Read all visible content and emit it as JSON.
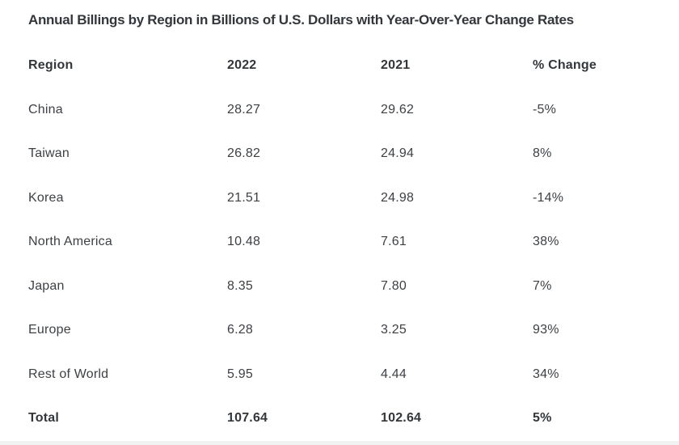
{
  "title": "Annual Billings by Region in Billions of U.S. Dollars with Year-Over-Year Change Rates",
  "table": {
    "columns": [
      "Region",
      "2022",
      "2021",
      "% Change"
    ],
    "rows": [
      [
        "China",
        "28.27",
        "29.62",
        "-5%"
      ],
      [
        "Taiwan",
        "26.82",
        "24.94",
        "8%"
      ],
      [
        "Korea",
        "21.51",
        "24.98",
        "-14%"
      ],
      [
        "North America",
        "10.48",
        "7.61",
        "38%"
      ],
      [
        "Japan",
        "8.35",
        "7.80",
        "7%"
      ],
      [
        "Europe",
        "6.28",
        "3.25",
        "93%"
      ],
      [
        "Rest of World",
        "5.95",
        "4.44",
        "34%"
      ]
    ],
    "total_row": [
      "Total",
      "107.64",
      "102.64",
      "5%"
    ]
  },
  "chart_data": {
    "type": "table",
    "title": "Annual Billings by Region in Billions of U.S. Dollars with Year-Over-Year Change Rates",
    "columns": [
      "Region",
      "2022",
      "2021",
      "% Change"
    ],
    "categories": [
      "China",
      "Taiwan",
      "Korea",
      "North America",
      "Japan",
      "Europe",
      "Rest of World",
      "Total"
    ],
    "series": [
      {
        "name": "2022",
        "values": [
          28.27,
          26.82,
          21.51,
          10.48,
          8.35,
          6.28,
          5.95,
          107.64
        ]
      },
      {
        "name": "2021",
        "values": [
          29.62,
          24.94,
          24.98,
          7.61,
          7.8,
          3.25,
          4.44,
          102.64
        ]
      },
      {
        "name": "% Change",
        "values": [
          "-5%",
          "8%",
          "-14%",
          "38%",
          "7%",
          "93%",
          "34%",
          "5%"
        ]
      }
    ],
    "units": "Billions of U.S. Dollars"
  },
  "colors": {
    "background": "#ffffff",
    "title_text": "#33373b",
    "body_text": "#3d4146",
    "bottom_strip": "#f1f2f2"
  }
}
